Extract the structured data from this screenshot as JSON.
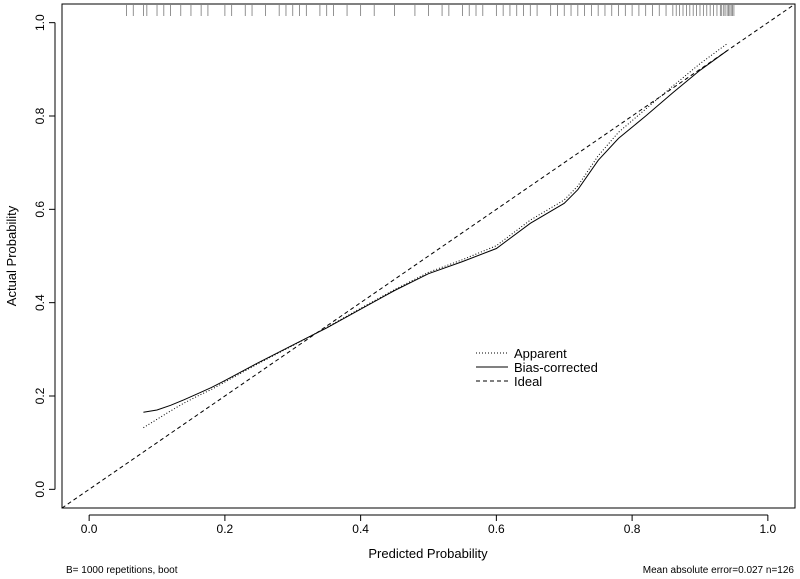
{
  "chart_data": {
    "type": "line",
    "title": "",
    "xlabel": "Predicted Probability",
    "ylabel": "Actual Probability",
    "xlim": [
      -0.04,
      1.04
    ],
    "ylim": [
      -0.04,
      1.04
    ],
    "x_ticks": [
      0.0,
      0.2,
      0.4,
      0.6,
      0.8,
      1.0
    ],
    "x_tick_labels": [
      "0.0",
      "0.2",
      "0.4",
      "0.6",
      "0.8",
      "1.0"
    ],
    "y_ticks": [
      0.0,
      0.2,
      0.4,
      0.6,
      0.8,
      1.0
    ],
    "y_tick_labels": [
      "0.0",
      "0.2",
      "0.4",
      "0.6",
      "0.8",
      "1.0"
    ],
    "grid": false,
    "legend_position": "center-right",
    "series": [
      {
        "name": "Apparent",
        "style": "dotted",
        "x": [
          0.08,
          0.1,
          0.12,
          0.14,
          0.16,
          0.18,
          0.2,
          0.25,
          0.3,
          0.35,
          0.4,
          0.45,
          0.5,
          0.55,
          0.6,
          0.65,
          0.7,
          0.72,
          0.75,
          0.78,
          0.82,
          0.86,
          0.9,
          0.94
        ],
        "y": [
          0.132,
          0.15,
          0.168,
          0.185,
          0.2,
          0.214,
          0.23,
          0.27,
          0.308,
          0.347,
          0.388,
          0.428,
          0.465,
          0.492,
          0.522,
          0.577,
          0.62,
          0.65,
          0.715,
          0.765,
          0.815,
          0.864,
          0.912,
          0.955
        ]
      },
      {
        "name": "Bias-corrected",
        "style": "solid",
        "x": [
          0.08,
          0.1,
          0.12,
          0.14,
          0.16,
          0.18,
          0.2,
          0.25,
          0.3,
          0.35,
          0.4,
          0.45,
          0.5,
          0.55,
          0.6,
          0.65,
          0.7,
          0.72,
          0.75,
          0.78,
          0.82,
          0.86,
          0.9,
          0.94
        ],
        "y": [
          0.165,
          0.17,
          0.18,
          0.192,
          0.205,
          0.218,
          0.233,
          0.272,
          0.309,
          0.346,
          0.386,
          0.426,
          0.462,
          0.488,
          0.516,
          0.57,
          0.613,
          0.642,
          0.705,
          0.752,
          0.8,
          0.85,
          0.898,
          0.94
        ]
      },
      {
        "name": "Ideal",
        "style": "dashed",
        "x": [
          -0.04,
          1.04
        ],
        "y": [
          -0.04,
          1.04
        ]
      }
    ],
    "rug": [
      0.055,
      0.065,
      0.08,
      0.085,
      0.1,
      0.11,
      0.12,
      0.135,
      0.15,
      0.165,
      0.175,
      0.2,
      0.21,
      0.23,
      0.24,
      0.26,
      0.28,
      0.29,
      0.3,
      0.31,
      0.32,
      0.34,
      0.35,
      0.36,
      0.38,
      0.4,
      0.42,
      0.45,
      0.48,
      0.5,
      0.52,
      0.53,
      0.55,
      0.56,
      0.57,
      0.58,
      0.6,
      0.61,
      0.62,
      0.63,
      0.64,
      0.65,
      0.66,
      0.68,
      0.69,
      0.7,
      0.71,
      0.72,
      0.73,
      0.74,
      0.75,
      0.76,
      0.77,
      0.78,
      0.79,
      0.8,
      0.81,
      0.82,
      0.83,
      0.84,
      0.85,
      0.86,
      0.865,
      0.87,
      0.875,
      0.88,
      0.885,
      0.89,
      0.895,
      0.9,
      0.905,
      0.91,
      0.915,
      0.92,
      0.925,
      0.93,
      0.932,
      0.935,
      0.937,
      0.94,
      0.942,
      0.944,
      0.946,
      0.948,
      0.95
    ]
  },
  "footnotes": {
    "left": "B= 1000 repetitions, boot",
    "right": "Mean absolute error=0.027 n=126"
  }
}
